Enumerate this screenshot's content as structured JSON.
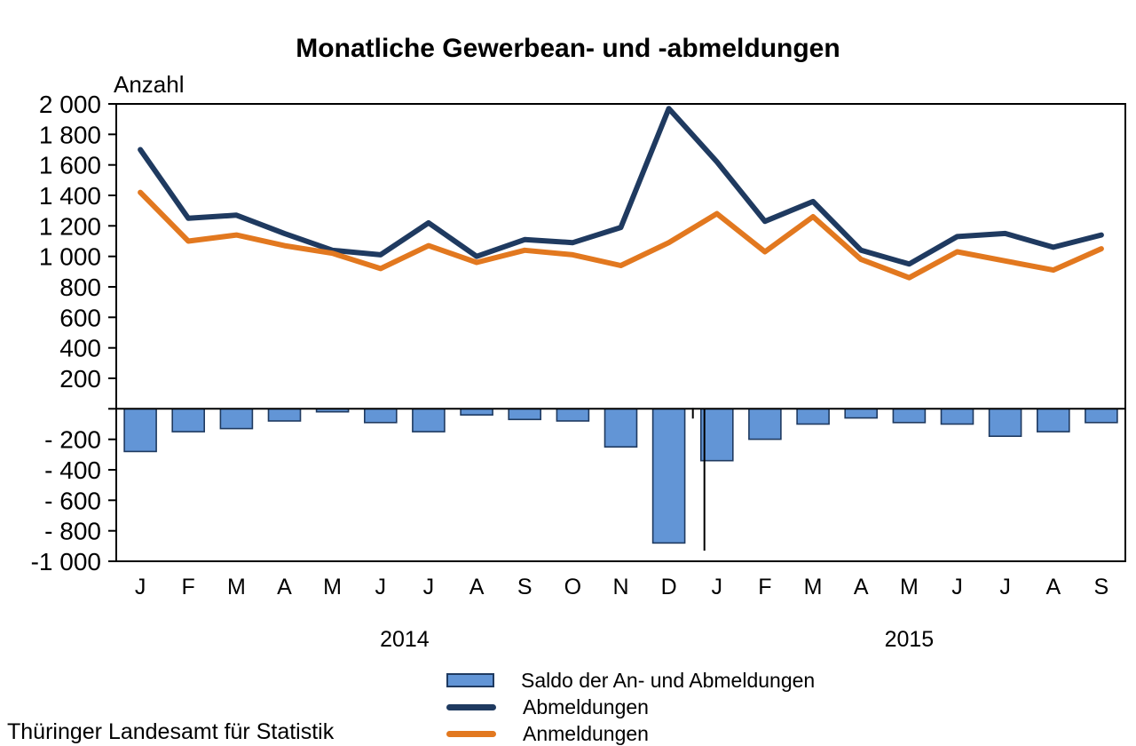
{
  "title": "Monatliche Gewerbean- und -abmeldungen",
  "source": "Thüringer Landesamt für Statistik",
  "chart_data": {
    "type": "bar+line",
    "title": "Monatliche Gewerbean- und -abmeldungen",
    "ylabel": "Anzahl",
    "xlabel": "",
    "categories": [
      "J",
      "F",
      "M",
      "A",
      "M",
      "J",
      "J",
      "A",
      "S",
      "O",
      "N",
      "D",
      "J",
      "F",
      "M",
      "A",
      "M",
      "J",
      "J",
      "A",
      "S"
    ],
    "year_groups": [
      {
        "label": "2014",
        "count": 12
      },
      {
        "label": "2015",
        "count": 9
      }
    ],
    "series": [
      {
        "name": "Saldo der An- und Abmeldungen",
        "type": "bar",
        "color": "#6295D6",
        "border_color": "#1F3A60",
        "values": [
          -280,
          -150,
          -130,
          -80,
          -20,
          -90,
          -150,
          -40,
          -70,
          -80,
          -250,
          -880,
          -340,
          -200,
          -100,
          -60,
          -90,
          -100,
          -180,
          -150,
          -90
        ]
      },
      {
        "name": "Abmeldungen",
        "type": "line",
        "color": "#1F3A60",
        "values": [
          1700,
          1250,
          1270,
          1150,
          1040,
          1010,
          1220,
          1000,
          1110,
          1090,
          1190,
          1970,
          1620,
          1230,
          1360,
          1040,
          950,
          1130,
          1150,
          1060,
          1140
        ]
      },
      {
        "name": "Anmeldungen",
        "type": "line",
        "color": "#E2781F",
        "values": [
          1420,
          1100,
          1140,
          1070,
          1020,
          920,
          1070,
          960,
          1040,
          1010,
          940,
          1090,
          1280,
          1030,
          1260,
          980,
          860,
          1030,
          970,
          910,
          1050
        ]
      }
    ],
    "y_axis": {
      "min": -1000,
      "max": 2000,
      "tick_step": 200,
      "ticks": [
        {
          "v": 2000,
          "label": "2 000"
        },
        {
          "v": 1800,
          "label": "1 800"
        },
        {
          "v": 1600,
          "label": "1 600"
        },
        {
          "v": 1400,
          "label": "1 400"
        },
        {
          "v": 1200,
          "label": "1 200"
        },
        {
          "v": 1000,
          "label": "1 000"
        },
        {
          "v": 800,
          "label": "800"
        },
        {
          "v": 600,
          "label": "600"
        },
        {
          "v": 400,
          "label": "400"
        },
        {
          "v": 200,
          "label": "200"
        },
        {
          "v": 0,
          "label": ""
        },
        {
          "v": -200,
          "label": "- 200"
        },
        {
          "v": -400,
          "label": "- 400"
        },
        {
          "v": -600,
          "label": "- 600"
        },
        {
          "v": -800,
          "label": "- 800"
        },
        {
          "v": -1000,
          "label": "-1 000"
        }
      ]
    },
    "layout": {
      "grid": "off",
      "legend_position": "bottom",
      "year_separator_after_index": 11,
      "year_separator_depth": -930
    },
    "legend": [
      {
        "label": "Saldo der An- und Abmeldungen",
        "swatch": "bar"
      },
      {
        "label": "Abmeldungen",
        "swatch": "line"
      },
      {
        "label": "Anmeldungen",
        "swatch": "line"
      }
    ]
  }
}
